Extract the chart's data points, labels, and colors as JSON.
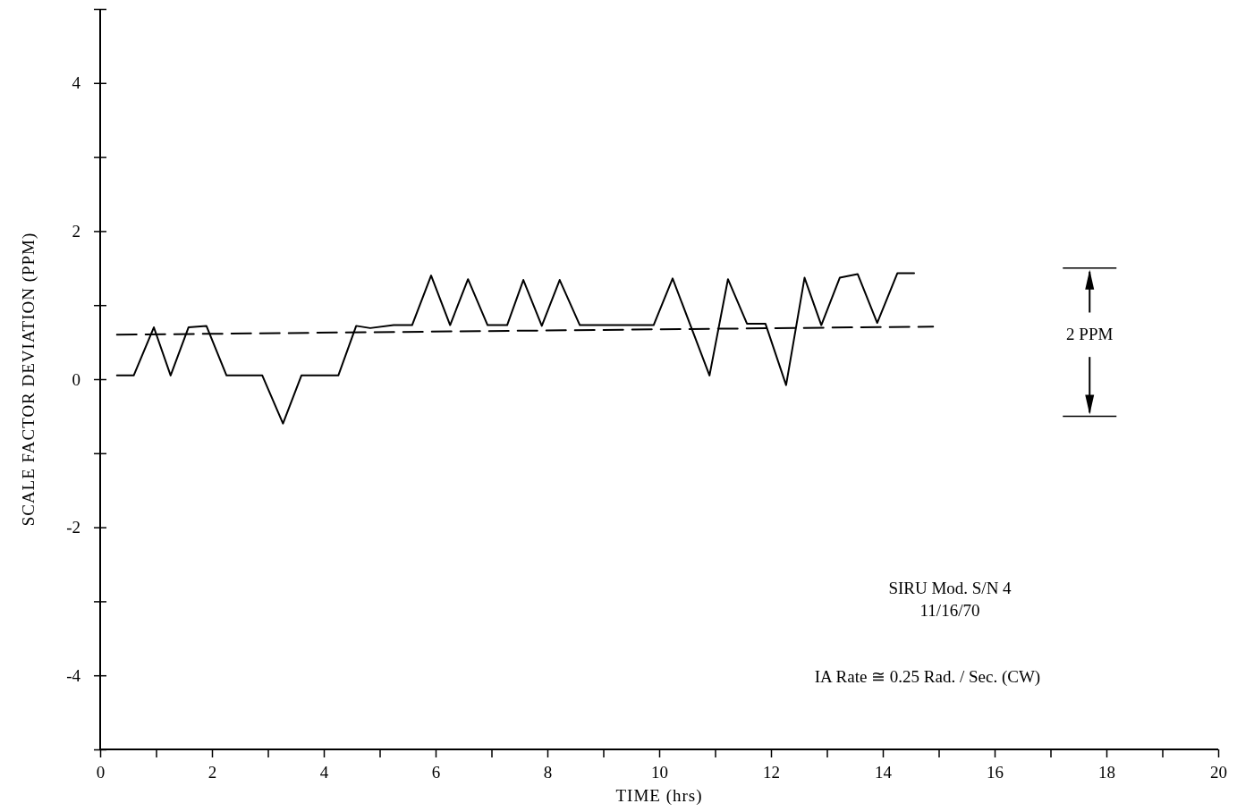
{
  "chart_data": {
    "type": "line",
    "xlabel": "TIME  (hrs)",
    "ylabel": "SCALE FACTOR DEVIATION (PPM)",
    "xlim": [
      0,
      20
    ],
    "ylim": [
      -5,
      5
    ],
    "xticks": [
      0,
      {
        "value": 1,
        "label": null
      },
      2,
      {
        "value": 3,
        "label": null
      },
      4,
      {
        "value": 5,
        "label": null
      },
      6,
      {
        "value": 7,
        "label": null
      },
      8,
      {
        "value": 9,
        "label": null
      },
      10,
      {
        "value": 11,
        "label": null
      },
      12,
      {
        "value": 13,
        "label": null
      },
      14,
      {
        "value": 15,
        "label": null
      },
      16,
      {
        "value": 17,
        "label": null
      },
      18,
      {
        "value": 19,
        "label": null
      },
      20
    ],
    "yticks": [
      {
        "value": -5,
        "label": null
      },
      -4,
      {
        "value": -3,
        "label": null
      },
      -2,
      {
        "value": -1,
        "label": null
      },
      0,
      {
        "value": 1,
        "label": null
      },
      2,
      {
        "value": 3,
        "label": null
      },
      4,
      {
        "value": 5,
        "label": null
      }
    ],
    "grid": false,
    "marker": "none",
    "series": [
      {
        "color": "#000000",
        "line_style": "solid",
        "x": [
          0.3,
          0.6,
          0.96,
          1.26,
          1.58,
          1.9,
          2.26,
          2.9,
          3.27,
          3.6,
          4.26,
          4.58,
          4.83,
          5.25,
          5.58,
          5.92,
          6.26,
          6.58,
          6.93,
          7.28,
          7.57,
          7.9,
          8.22,
          8.58,
          9.9,
          10.24,
          10.9,
          11.23,
          11.57,
          11.9,
          12.27,
          12.6,
          12.9,
          13.23,
          13.55,
          13.9,
          14.26,
          14.56
        ],
        "values": [
          0.05,
          0.05,
          0.7,
          0.05,
          0.7,
          0.72,
          0.05,
          0.05,
          -0.6,
          0.05,
          0.05,
          0.72,
          0.69,
          0.73,
          0.73,
          1.4,
          0.73,
          1.35,
          0.73,
          0.73,
          1.34,
          0.72,
          1.34,
          0.73,
          0.73,
          1.36,
          0.05,
          1.35,
          0.75,
          0.75,
          -0.08,
          1.37,
          0.73,
          1.37,
          1.42,
          0.76,
          1.43,
          1.43
        ]
      },
      {
        "color": "#000000",
        "line_style": "dashed",
        "x": [
          0.3,
          14.9
        ],
        "values": [
          0.6,
          0.71
        ]
      }
    ],
    "annotations": [
      "2 PPM",
      "SIRU Mod. S/N 4",
      "11/16/70",
      "IA Rate ≅ 0.25 Rad. / Sec. (CW)"
    ]
  }
}
